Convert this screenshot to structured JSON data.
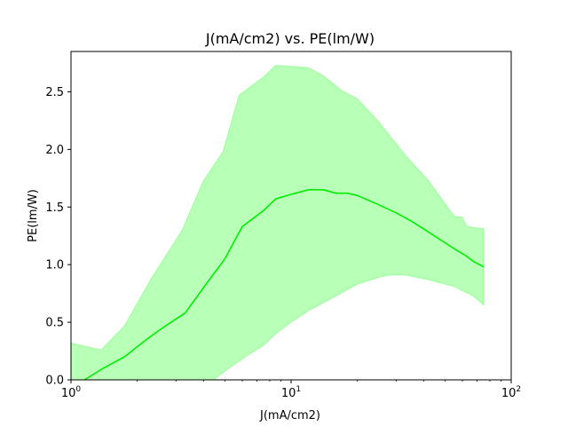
{
  "chart_data": {
    "type": "area",
    "title": "J(mA/cm2) vs. PE(lm/W)",
    "xlabel": "J(mA/cm2)",
    "ylabel": "PE(lm/W)",
    "xscale": "log",
    "xlim": [
      1,
      100
    ],
    "ylim": [
      0,
      2.85
    ],
    "grid": false,
    "legend": "none",
    "x_ticks": [
      {
        "value": 1,
        "base": "10",
        "exp": "0"
      },
      {
        "value": 10,
        "base": "10",
        "exp": "1"
      },
      {
        "value": 100,
        "base": "10",
        "exp": "2"
      }
    ],
    "y_ticks": [
      {
        "value": 0,
        "label": "0.0"
      },
      {
        "value": 0.5,
        "label": "0.5"
      },
      {
        "value": 1.0,
        "label": "1.0"
      },
      {
        "value": 1.5,
        "label": "1.5"
      },
      {
        "value": 2.0,
        "label": "2.0"
      },
      {
        "value": 2.5,
        "label": "2.5"
      }
    ],
    "series": [
      {
        "kind": "line",
        "color": "#00ee00",
        "x": [
          1.15,
          1.4,
          1.75,
          2.2,
          2.6,
          3.3,
          4.0,
          5.0,
          6.0,
          7.5,
          8.5,
          10,
          12,
          14,
          16,
          18,
          20,
          25,
          30,
          35,
          40,
          50,
          57,
          62,
          67,
          75
        ],
        "y": [
          0.0,
          0.1,
          0.2,
          0.35,
          0.45,
          0.58,
          0.8,
          1.05,
          1.33,
          1.47,
          1.57,
          1.61,
          1.65,
          1.65,
          1.62,
          1.62,
          1.6,
          1.52,
          1.45,
          1.38,
          1.31,
          1.19,
          1.12,
          1.08,
          1.03,
          0.98
        ]
      },
      {
        "kind": "band",
        "color": "#00ff00",
        "opacity": 0.28,
        "upper_x": [
          1.0,
          1.37,
          1.75,
          2.3,
          3.2,
          4.0,
          4.9,
          5.8,
          6.6,
          7.5,
          8.5,
          10,
          12,
          14,
          17,
          20,
          25,
          33,
          42,
          55,
          60,
          63,
          75
        ],
        "upper_y": [
          0.32,
          0.26,
          0.47,
          0.87,
          1.3,
          1.73,
          1.98,
          2.47,
          2.55,
          2.63,
          2.73,
          2.72,
          2.71,
          2.64,
          2.51,
          2.44,
          2.24,
          1.95,
          1.73,
          1.42,
          1.41,
          1.33,
          1.31
        ],
        "lower_x": [
          4.45,
          5.2,
          6.2,
          7.5,
          8.5,
          10,
          12,
          15,
          20,
          25,
          28,
          33,
          42,
          55,
          62,
          67,
          75
        ],
        "lower_y": [
          0.0,
          0.1,
          0.2,
          0.3,
          0.4,
          0.5,
          0.6,
          0.7,
          0.83,
          0.89,
          0.91,
          0.91,
          0.87,
          0.81,
          0.76,
          0.73,
          0.65
        ]
      }
    ]
  }
}
